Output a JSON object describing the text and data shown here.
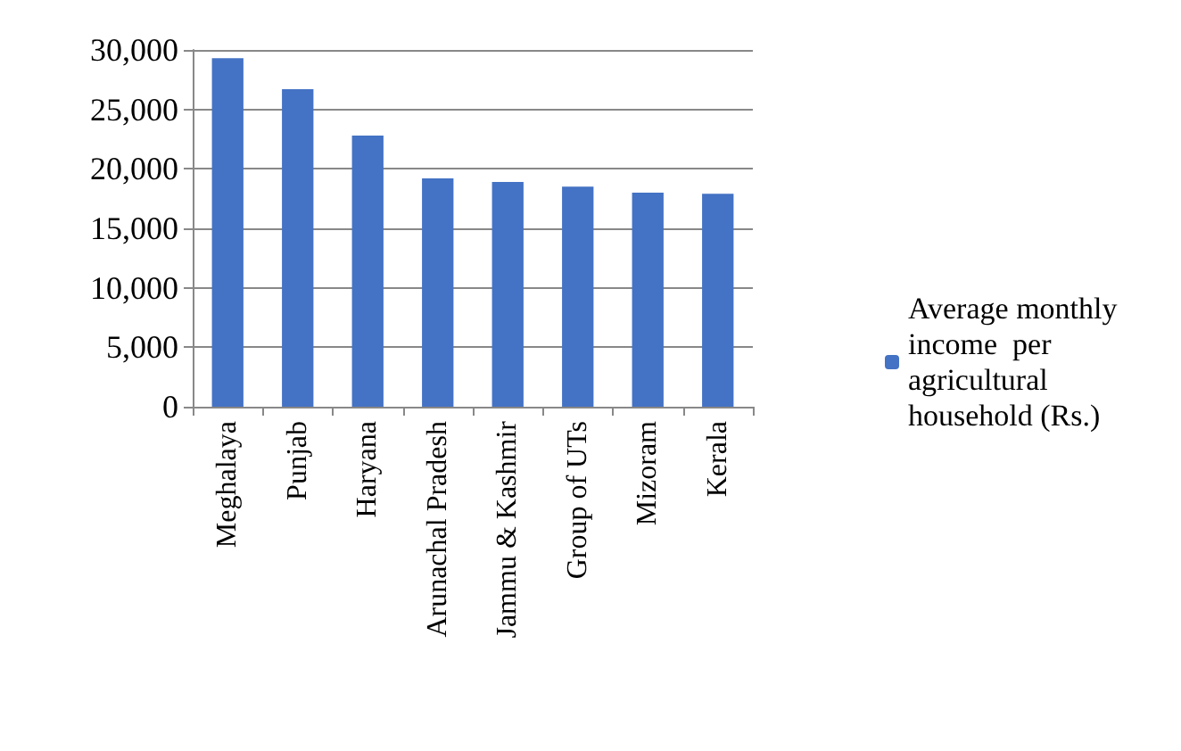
{
  "chart_data": {
    "type": "bar",
    "categories": [
      "Meghalaya",
      "Punjab",
      "Haryana",
      "Arunachal Pradesh",
      "Jammu & Kashmir",
      "Group of UTs",
      "Mizoram",
      "Kerala"
    ],
    "series": [
      {
        "name": "Average monthly income  per agricultural household (Rs.)",
        "color": "#4472c4",
        "values": [
          29300,
          26700,
          22800,
          19200,
          18900,
          18500,
          18000,
          17900
        ]
      }
    ],
    "ylim": [
      0,
      30000
    ],
    "yticks": [
      {
        "value": 0,
        "label": "0"
      },
      {
        "value": 5000,
        "label": "5,000"
      },
      {
        "value": 10000,
        "label": "10,000"
      },
      {
        "value": 15000,
        "label": "15,000"
      },
      {
        "value": 20000,
        "label": "20,000"
      },
      {
        "value": 25000,
        "label": "25,000"
      },
      {
        "value": 30000,
        "label": "30,000"
      }
    ],
    "grid": "y",
    "legend": "right"
  }
}
